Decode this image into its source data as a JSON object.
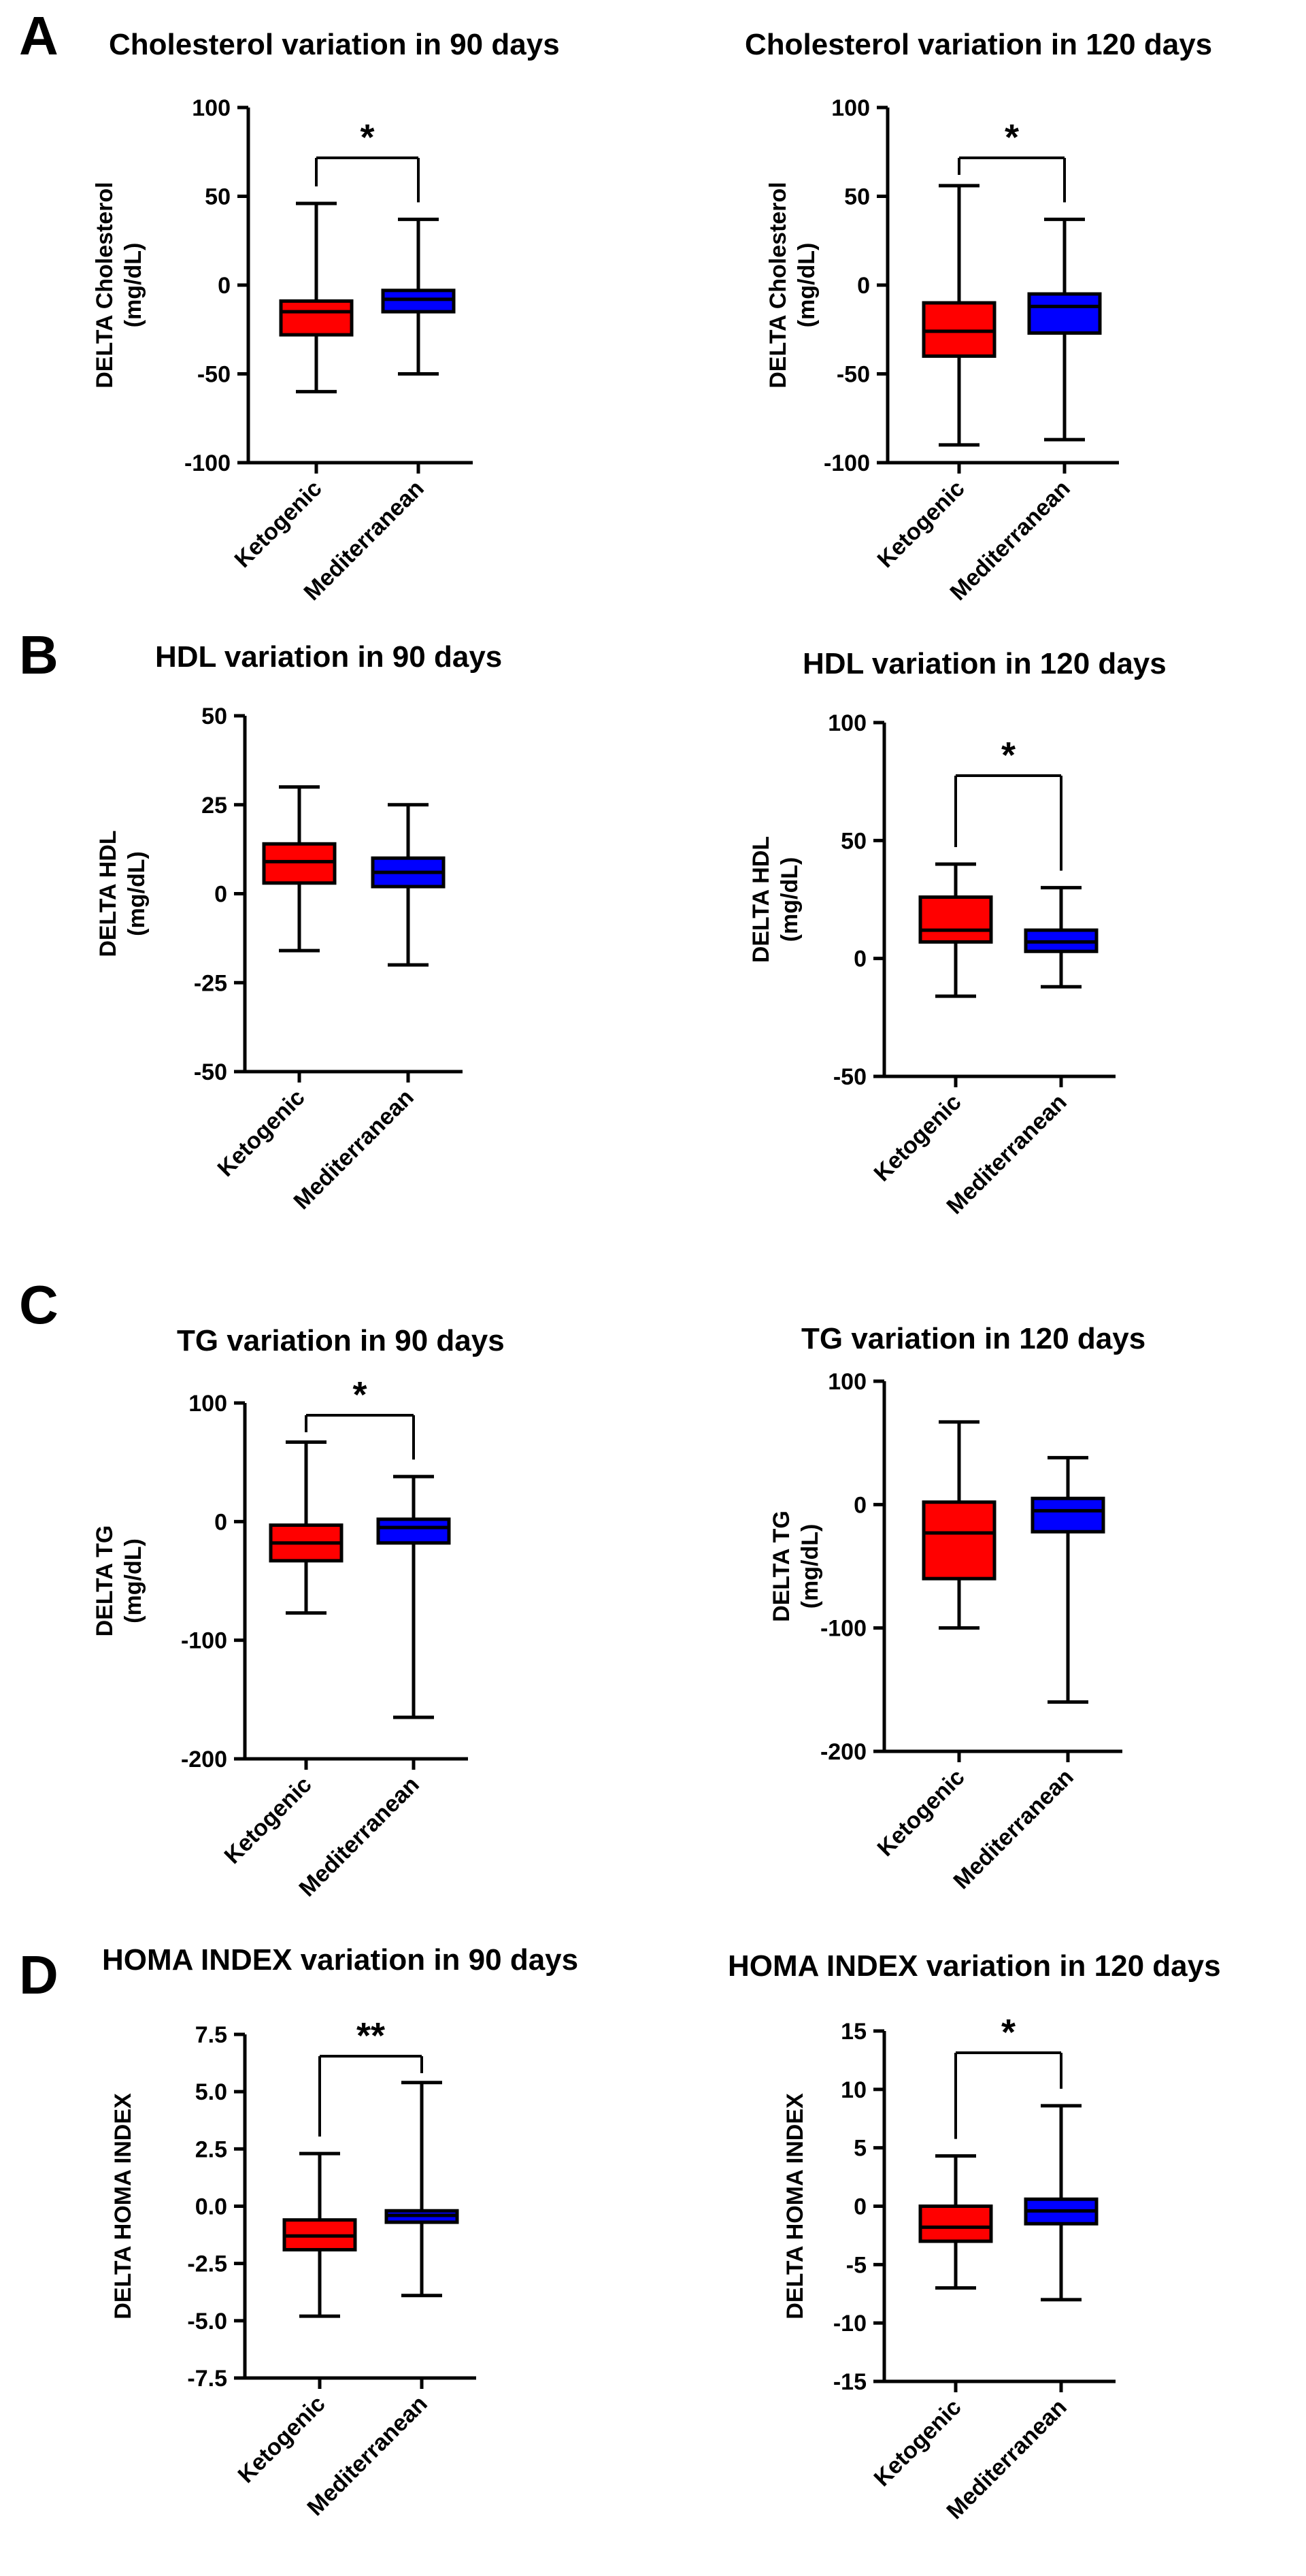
{
  "panels": [
    "A",
    "B",
    "C",
    "D"
  ],
  "chart_data": [
    {
      "type": "box",
      "panel": "A",
      "title": "Cholesterol variation in 90 days",
      "ylabel": [
        "DELTA Cholesterol",
        "(mg/dL)"
      ],
      "yticks": [
        100,
        50,
        0,
        -50,
        -100
      ],
      "ylim": [
        -100,
        100
      ],
      "categories": [
        "Ketogenic",
        "Mediterranean"
      ],
      "colors": [
        "#ff0000",
        "#0000ff"
      ],
      "boxes": [
        {
          "min": -60,
          "q1": -28,
          "median": -15,
          "q3": -9,
          "max": 46
        },
        {
          "min": -50,
          "q1": -15,
          "median": -8,
          "q3": -3,
          "max": 37
        }
      ],
      "significance": "*"
    },
    {
      "type": "box",
      "panel": "A",
      "title": "Cholesterol variation in 120 days",
      "ylabel": [
        "DELTA Cholesterol",
        "(mg/dL)"
      ],
      "yticks": [
        100,
        50,
        0,
        -50,
        -100
      ],
      "ylim": [
        -100,
        100
      ],
      "categories": [
        "Ketogenic",
        "Mediterranean"
      ],
      "colors": [
        "#ff0000",
        "#0000ff"
      ],
      "boxes": [
        {
          "min": -90,
          "q1": -40,
          "median": -26,
          "q3": -10,
          "max": 56
        },
        {
          "min": -87,
          "q1": -27,
          "median": -12,
          "q3": -5,
          "max": 37
        }
      ],
      "significance": "*"
    },
    {
      "type": "box",
      "panel": "B",
      "title": "HDL variation in 90 days",
      "ylabel": [
        "DELTA HDL",
        "(mg/dL)"
      ],
      "yticks": [
        50,
        25,
        0,
        -25,
        -50
      ],
      "ylim": [
        -50,
        50
      ],
      "categories": [
        "Ketogenic",
        "Mediterranean"
      ],
      "colors": [
        "#ff0000",
        "#0000ff"
      ],
      "boxes": [
        {
          "min": -16,
          "q1": 3,
          "median": 9,
          "q3": 14,
          "max": 30
        },
        {
          "min": -20,
          "q1": 2,
          "median": 6,
          "q3": 10,
          "max": 25
        }
      ],
      "significance": ""
    },
    {
      "type": "box",
      "panel": "B",
      "title": "HDL variation in 120 days",
      "ylabel": [
        "DELTA HDL",
        "(mg/dL)"
      ],
      "yticks": [
        100,
        50,
        0,
        -50
      ],
      "ylim": [
        -50,
        100
      ],
      "categories": [
        "Ketogenic",
        "Mediterranean"
      ],
      "colors": [
        "#ff0000",
        "#0000ff"
      ],
      "boxes": [
        {
          "min": -16,
          "q1": 7,
          "median": 12,
          "q3": 26,
          "max": 40
        },
        {
          "min": -12,
          "q1": 3,
          "median": 7,
          "q3": 12,
          "max": 30
        }
      ],
      "significance": "*"
    },
    {
      "type": "box",
      "panel": "C",
      "title": "TG variation in 90 days",
      "ylabel": [
        "DELTA TG",
        "(mg/dL)"
      ],
      "yticks": [
        100,
        0,
        -100,
        -200
      ],
      "ylim": [
        -200,
        100
      ],
      "categories": [
        "Ketogenic",
        "Mediterranean"
      ],
      "colors": [
        "#ff0000",
        "#0000ff"
      ],
      "boxes": [
        {
          "min": -77,
          "q1": -33,
          "median": -18,
          "q3": -3,
          "max": 67
        },
        {
          "min": -165,
          "q1": -18,
          "median": -5,
          "q3": 2,
          "max": 38
        }
      ],
      "significance": "*"
    },
    {
      "type": "box",
      "panel": "C",
      "title": "TG variation in 120 days",
      "ylabel": [
        "DELTA TG",
        "(mg/dL)"
      ],
      "yticks": [
        100,
        0,
        -100,
        -200
      ],
      "ylim": [
        -200,
        100
      ],
      "categories": [
        "Ketogenic",
        "Mediterranean"
      ],
      "colors": [
        "#ff0000",
        "#0000ff"
      ],
      "boxes": [
        {
          "min": -100,
          "q1": -60,
          "median": -23,
          "q3": 2,
          "max": 67
        },
        {
          "min": -160,
          "q1": -22,
          "median": -5,
          "q3": 5,
          "max": 38
        }
      ],
      "significance": ""
    },
    {
      "type": "box",
      "panel": "D",
      "title": "HOMA INDEX variation in 90 days",
      "ylabel": [
        "DELTA HOMA INDEX"
      ],
      "yticks": [
        "7.5",
        "5.0",
        "2.5",
        "0.0",
        "-2.5",
        "-5.0",
        "-7.5"
      ],
      "ylim": [
        -7.5,
        7.5
      ],
      "categories": [
        "Ketogenic",
        "Mediterranean"
      ],
      "colors": [
        "#ff0000",
        "#0000ff"
      ],
      "boxes": [
        {
          "min": -4.8,
          "q1": -1.9,
          "median": -1.3,
          "q3": -0.6,
          "max": 2.3
        },
        {
          "min": -3.9,
          "q1": -0.7,
          "median": -0.4,
          "q3": -0.2,
          "max": 5.4
        }
      ],
      "significance": "**"
    },
    {
      "type": "box",
      "panel": "D",
      "title": "HOMA INDEX variation in 120 days",
      "ylabel": [
        "DELTA HOMA INDEX"
      ],
      "yticks": [
        15,
        10,
        5,
        0,
        -5,
        -10,
        -15
      ],
      "ylim": [
        -15,
        15
      ],
      "categories": [
        "Ketogenic",
        "Mediterranean"
      ],
      "colors": [
        "#ff0000",
        "#0000ff"
      ],
      "boxes": [
        {
          "min": -7,
          "q1": -3,
          "median": -1.8,
          "q3": 0,
          "max": 4.3
        },
        {
          "min": -8,
          "q1": -1.5,
          "median": -0.4,
          "q3": 0.6,
          "max": 8.6
        }
      ],
      "significance": "*"
    }
  ]
}
